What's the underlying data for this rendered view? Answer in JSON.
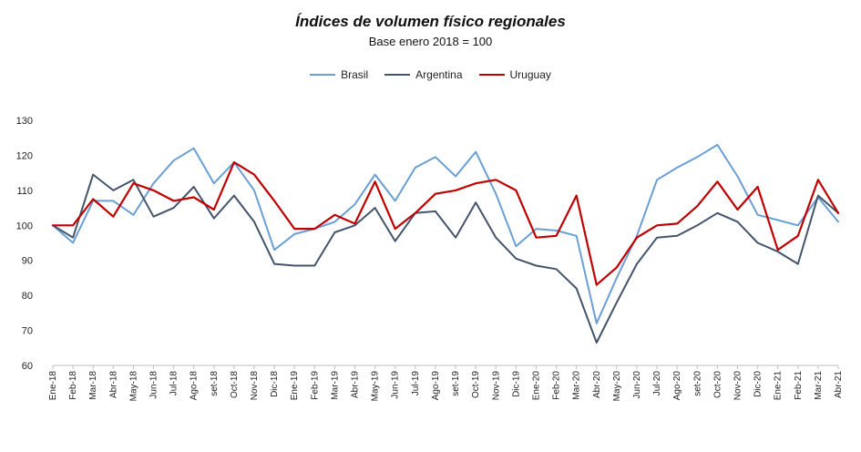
{
  "chart_data": {
    "type": "line",
    "title": "Índices de volumen físico regionales",
    "subtitle": "Base enero 2018 = 100",
    "xlabel": "",
    "ylabel": "",
    "ylim": [
      60,
      130
    ],
    "yticks": [
      60,
      70,
      80,
      90,
      100,
      110,
      120,
      130
    ],
    "grid": false,
    "legend_position": "top-center",
    "categories": [
      "Ene-18",
      "Feb-18",
      "Mar-18",
      "Abr-18",
      "May-18",
      "Jun-18",
      "Jul-18",
      "Ago-18",
      "set-18",
      "Oct-18",
      "Nov-18",
      "Dic-18",
      "Ene-19",
      "Feb-19",
      "Mar-19",
      "Abr-19",
      "May-19",
      "Jun-19",
      "Jul-19",
      "Ago-19",
      "set-19",
      "Oct-19",
      "Nov-19",
      "Dic-19",
      "Ene-20",
      "Feb-20",
      "Mar-20",
      "Abr-20",
      "May-20",
      "Jun-20",
      "Jul-20",
      "Ago-20",
      "set-20",
      "Oct-20",
      "Nov-20",
      "Dic-20",
      "Ene-21",
      "Feb-21",
      "Mar-21",
      "Abr-21"
    ],
    "series": [
      {
        "name": "Brasil",
        "color": "#6a9fd4",
        "values": [
          100,
          95,
          107,
          107,
          103,
          112,
          118.5,
          122,
          112,
          118,
          110,
          93,
          97.5,
          99,
          101,
          106,
          114.5,
          107,
          116.5,
          119.5,
          114,
          121,
          109,
          94,
          99,
          98.5,
          97,
          72,
          85,
          97,
          113,
          116.5,
          119.5,
          123,
          114,
          103,
          101.5,
          100,
          108,
          101
        ]
      },
      {
        "name": "Argentina",
        "color": "#44546a",
        "values": [
          100,
          96.5,
          114.5,
          110,
          113,
          102.5,
          105,
          111,
          102,
          108.5,
          101,
          89,
          88.5,
          88.5,
          98,
          100,
          105,
          95.5,
          103.5,
          104,
          96.5,
          106.5,
          96.5,
          90.5,
          88.5,
          87.5,
          82,
          66.5,
          78,
          89,
          96.5,
          97,
          100,
          103.5,
          101,
          95,
          92.5,
          89,
          108.5,
          103.5
        ]
      },
      {
        "name": "Uruguay",
        "color": "#c00000",
        "values": [
          100,
          100,
          107.5,
          102.5,
          112,
          110,
          107,
          108,
          104.5,
          118,
          114.5,
          107,
          99,
          99,
          103,
          100.5,
          112.5,
          99,
          103.5,
          109,
          110,
          112,
          113,
          110,
          96.5,
          97,
          108.5,
          83,
          88,
          96.5,
          100,
          100.5,
          105.5,
          112.5,
          104.5,
          111,
          93,
          97,
          113,
          103.5
        ]
      }
    ]
  }
}
